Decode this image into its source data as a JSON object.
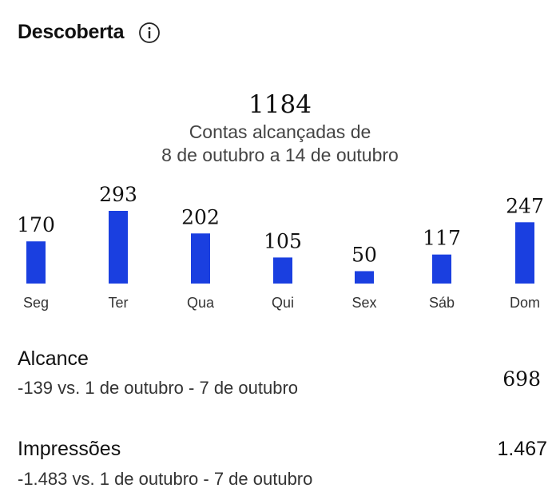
{
  "header": {
    "title": "Descoberta",
    "info_icon": "info-icon"
  },
  "summary": {
    "total": "1184",
    "line1": "Contas alcançadas de",
    "line2": "8 de outubro a 14 de outubro"
  },
  "chart_data": {
    "type": "bar",
    "categories": [
      "Seg",
      "Ter",
      "Qua",
      "Qui",
      "Sex",
      "Sáb",
      "Dom"
    ],
    "values": [
      170,
      293,
      202,
      105,
      50,
      117,
      247
    ],
    "title": "",
    "xlabel": "",
    "ylabel": "",
    "ylim": [
      0,
      300
    ],
    "grid": false,
    "bar_color": "#1a3fe0"
  },
  "metrics": {
    "alcance": {
      "label": "Alcance",
      "comparison": "-139 vs. 1 de outubro - 7 de outubro",
      "value": "698"
    },
    "impressoes": {
      "label": "Impressões",
      "comparison": "-1.483 vs. 1 de outubro - 7 de outubro",
      "value": "1.467"
    }
  }
}
